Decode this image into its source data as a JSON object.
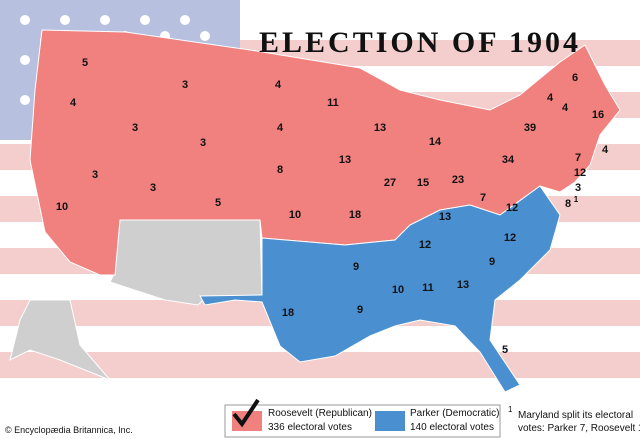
{
  "title": "ELECTION OF 1904",
  "states": [
    {
      "votes": 5
    },
    {
      "votes": 4
    },
    {
      "votes": 3
    },
    {
      "votes": 3
    },
    {
      "votes": 3
    },
    {
      "votes": 10
    },
    {
      "votes": 3
    },
    {
      "votes": 3
    },
    {
      "votes": 5
    },
    {
      "votes": 4
    },
    {
      "votes": 4
    },
    {
      "votes": 8
    },
    {
      "votes": 10
    },
    {
      "votes": 11
    },
    {
      "votes": 13
    },
    {
      "votes": 13
    },
    {
      "votes": 18
    },
    {
      "votes": 27
    },
    {
      "votes": 15
    },
    {
      "votes": 14
    },
    {
      "votes": 23
    },
    {
      "votes": 7
    },
    {
      "votes": 34
    },
    {
      "votes": 39
    },
    {
      "votes": 6
    },
    {
      "votes": 4
    },
    {
      "votes": 4
    },
    {
      "votes": 16
    },
    {
      "votes": 4
    },
    {
      "votes": 7
    },
    {
      "votes": 12
    },
    {
      "votes": 3
    },
    {
      "votes": 8,
      "note": "1"
    },
    {
      "votes": 13
    },
    {
      "votes": 12
    },
    {
      "votes": 12
    },
    {
      "votes": 12
    },
    {
      "votes": 9
    },
    {
      "votes": 9
    },
    {
      "votes": 10
    },
    {
      "votes": 11
    },
    {
      "votes": 13
    },
    {
      "votes": 18
    },
    {
      "votes": 9
    },
    {
      "votes": 5
    }
  ],
  "legend": {
    "republican": {
      "name": "Roosevelt (Republican)",
      "votes": "336 electoral votes"
    },
    "democratic": {
      "name": "Parker (Democratic)",
      "votes": "140 electoral votes"
    }
  },
  "footnote": {
    "mark": "1",
    "lines": [
      "Maryland split its electoral",
      "votes: Parker 7, Roosevelt 1."
    ]
  },
  "credit": "© Encyclopædia Britannica, Inc."
}
